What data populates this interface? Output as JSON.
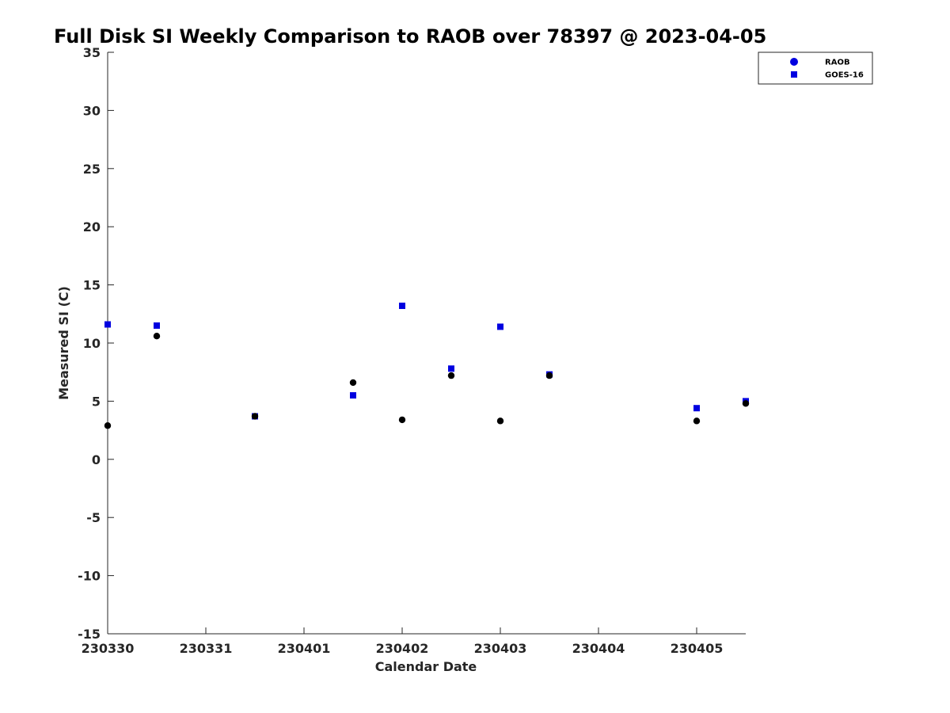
{
  "chart_data": {
    "type": "scatter",
    "title": "Full Disk SI Weekly Comparison to RAOB over 78397 @ 2023-04-05",
    "xlabel": "Calendar Date",
    "ylabel": "Measured SI (C)",
    "xlim": [
      "2023-03-30",
      "2023-04-05 12:00"
    ],
    "ylim": [
      -15,
      35
    ],
    "x_ticks": [
      {
        "x": "2023-03-30",
        "label": "230330"
      },
      {
        "x": "2023-03-31",
        "label": "230331"
      },
      {
        "x": "2023-04-01",
        "label": "230401"
      },
      {
        "x": "2023-04-02",
        "label": "230402"
      },
      {
        "x": "2023-04-03",
        "label": "230403"
      },
      {
        "x": "2023-04-04",
        "label": "230404"
      },
      {
        "x": "2023-04-05",
        "label": "230405"
      }
    ],
    "y_ticks": [
      35,
      30,
      25,
      20,
      15,
      10,
      5,
      0,
      -5,
      -10,
      -15
    ],
    "grid": false,
    "legend_position": "top-right",
    "series": [
      {
        "name": "RAOB",
        "marker": "circle",
        "legend_color": "#0000e0",
        "color": "#000000",
        "points": [
          {
            "x": "2023-03-30 00:00",
            "y": 2.9
          },
          {
            "x": "2023-03-30 12:00",
            "y": 10.6
          },
          {
            "x": "2023-03-31 12:00",
            "y": 3.7
          },
          {
            "x": "2023-04-01 12:00",
            "y": 6.6
          },
          {
            "x": "2023-04-02 00:00",
            "y": 3.4
          },
          {
            "x": "2023-04-02 12:00",
            "y": 7.2
          },
          {
            "x": "2023-04-03 00:00",
            "y": 3.3
          },
          {
            "x": "2023-04-03 12:00",
            "y": 7.2
          },
          {
            "x": "2023-04-05 00:00",
            "y": 3.3
          },
          {
            "x": "2023-04-05 12:00",
            "y": 4.8
          }
        ]
      },
      {
        "name": "GOES-16",
        "marker": "square",
        "color": "#0000e0",
        "points": [
          {
            "x": "2023-03-30 00:00",
            "y": 11.6
          },
          {
            "x": "2023-03-30 12:00",
            "y": 11.5
          },
          {
            "x": "2023-03-31 12:00",
            "y": 3.7
          },
          {
            "x": "2023-04-01 12:00",
            "y": 5.5
          },
          {
            "x": "2023-04-02 00:00",
            "y": 13.2
          },
          {
            "x": "2023-04-02 12:00",
            "y": 7.8
          },
          {
            "x": "2023-04-03 00:00",
            "y": 11.4
          },
          {
            "x": "2023-04-03 12:00",
            "y": 7.3
          },
          {
            "x": "2023-04-05 00:00",
            "y": 4.4
          },
          {
            "x": "2023-04-05 12:00",
            "y": 5.0
          }
        ]
      }
    ]
  },
  "colors": {
    "axis": "#262626",
    "legend_border": "#262626",
    "background": "#ffffff"
  }
}
